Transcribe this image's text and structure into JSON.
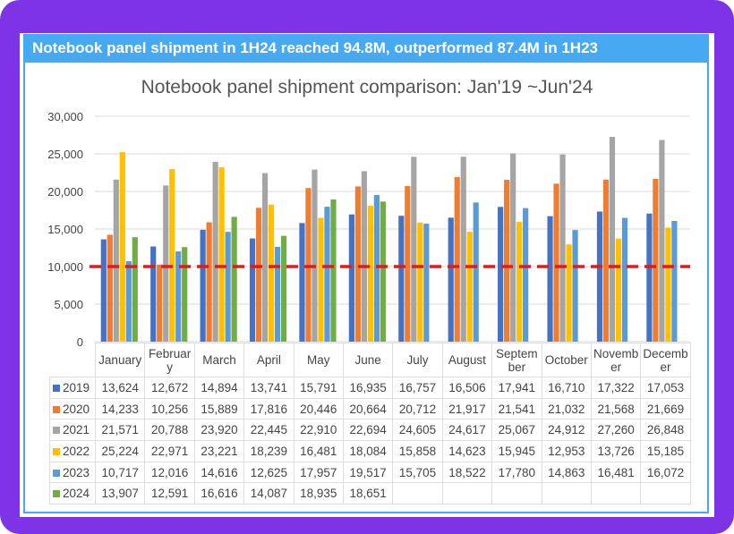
{
  "banner": "Notebook panel shipment in 1H24 reached 94.8M, outperformed 87.4M in 1H23",
  "chart_data": {
    "type": "bar",
    "title": "Notebook panel shipment comparison: Jan'19 ~Jun'24",
    "categories": [
      "January",
      "Februar y",
      "March",
      "April",
      "May",
      "June",
      "July",
      "August",
      "Septem ber",
      "October",
      "Novemb er",
      "Decemb er"
    ],
    "ylim": [
      0,
      30000
    ],
    "yticks": [
      "0",
      "5,000",
      "10,000",
      "15,000",
      "20,000",
      "25,000",
      "30,000"
    ],
    "ytick_values": [
      0,
      5000,
      10000,
      15000,
      20000,
      25000,
      30000
    ],
    "reference_line": {
      "value": 10000,
      "color": "#e31a1a",
      "style": "dashed"
    },
    "grid": true,
    "series": [
      {
        "name": "2019",
        "color": "#4472c4",
        "values": [
          13624,
          12672,
          14894,
          13741,
          15791,
          16935,
          16757,
          16506,
          17941,
          16710,
          17322,
          17053
        ],
        "labels": [
          "13,624",
          "12,672",
          "14,894",
          "13,741",
          "15,791",
          "16,935",
          "16,757",
          "16,506",
          "17,941",
          "16,710",
          "17,322",
          "17,053"
        ]
      },
      {
        "name": "2020",
        "color": "#ed7d31",
        "values": [
          14233,
          10256,
          15889,
          17816,
          20446,
          20664,
          20712,
          21917,
          21541,
          21032,
          21568,
          21669
        ],
        "labels": [
          "14,233",
          "10,256",
          "15,889",
          "17,816",
          "20,446",
          "20,664",
          "20,712",
          "21,917",
          "21,541",
          "21,032",
          "21,568",
          "21,669"
        ]
      },
      {
        "name": "2021",
        "color": "#a5a5a5",
        "values": [
          21571,
          20788,
          23920,
          22445,
          22910,
          22694,
          24605,
          24617,
          25067,
          24912,
          27260,
          26848
        ],
        "labels": [
          "21,571",
          "20,788",
          "23,920",
          "22,445",
          "22,910",
          "22,694",
          "24,605",
          "24,617",
          "25,067",
          "24,912",
          "27,260",
          "26,848"
        ]
      },
      {
        "name": "2022",
        "color": "#ffc000",
        "values": [
          25224,
          22971,
          23221,
          18239,
          16481,
          18084,
          15858,
          14623,
          15945,
          12953,
          13726,
          15185
        ],
        "labels": [
          "25,224",
          "22,971",
          "23,221",
          "18,239",
          "16,481",
          "18,084",
          "15,858",
          "14,623",
          "15,945",
          "12,953",
          "13,726",
          "15,185"
        ]
      },
      {
        "name": "2023",
        "color": "#5b9bd5",
        "values": [
          10717,
          12016,
          14616,
          12625,
          17957,
          19517,
          15705,
          18522,
          17780,
          14863,
          16481,
          16072
        ],
        "labels": [
          "10,717",
          "12,016",
          "14,616",
          "12,625",
          "17,957",
          "19,517",
          "15,705",
          "18,522",
          "17,780",
          "14,863",
          "16,481",
          "16,072"
        ]
      },
      {
        "name": "2024",
        "color": "#70ad47",
        "values": [
          13907,
          12591,
          16616,
          14087,
          18935,
          18651,
          null,
          null,
          null,
          null,
          null,
          null
        ],
        "labels": [
          "13,907",
          "12,591",
          "16,616",
          "14,087",
          "18,935",
          "18,651",
          "",
          "",
          "",
          "",
          "",
          ""
        ]
      }
    ]
  }
}
